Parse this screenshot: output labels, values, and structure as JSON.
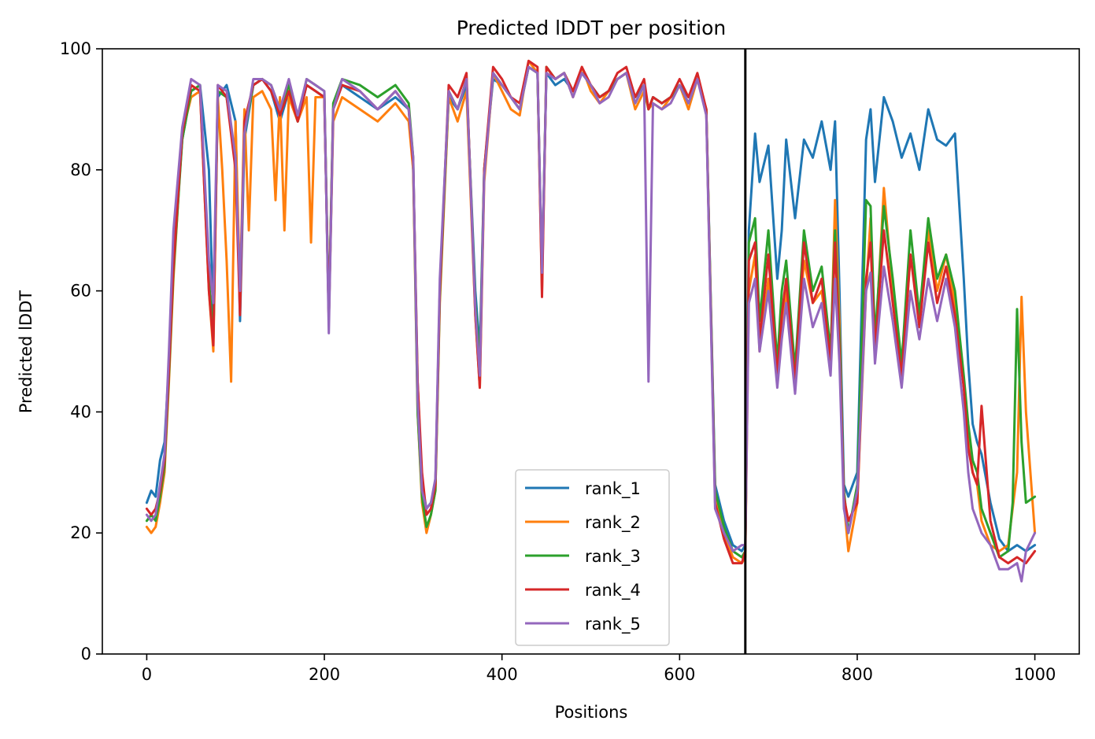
{
  "chart_data": {
    "type": "line",
    "title": "Predicted lDDT per position",
    "xlabel": "Positions",
    "ylabel": "Predicted lDDT",
    "xlim": [
      -50,
      1050
    ],
    "ylim": [
      0,
      100
    ],
    "xticks": [
      0,
      200,
      400,
      600,
      800,
      1000
    ],
    "yticks": [
      0,
      20,
      40,
      60,
      80,
      100
    ],
    "vline": 674,
    "grid": false,
    "legend_position": "lower-center",
    "series": [
      {
        "name": "rank_1",
        "color": "#1f77b4",
        "x": [
          0,
          5,
          10,
          15,
          20,
          25,
          30,
          40,
          50,
          60,
          70,
          75,
          80,
          90,
          100,
          105,
          110,
          120,
          130,
          140,
          150,
          160,
          170,
          180,
          190,
          200,
          205,
          210,
          220,
          240,
          260,
          280,
          295,
          300,
          305,
          310,
          315,
          320,
          325,
          330,
          340,
          350,
          360,
          370,
          375,
          380,
          390,
          400,
          410,
          420,
          430,
          440,
          445,
          450,
          460,
          470,
          480,
          490,
          500,
          510,
          520,
          530,
          540,
          550,
          560,
          565,
          570,
          580,
          590,
          600,
          610,
          620,
          630,
          640,
          650,
          660,
          670,
          674,
          678,
          685,
          690,
          700,
          710,
          715,
          720,
          730,
          740,
          750,
          760,
          770,
          775,
          780,
          785,
          790,
          800,
          810,
          815,
          820,
          830,
          840,
          850,
          860,
          870,
          880,
          890,
          900,
          910,
          920,
          925,
          930,
          935,
          940,
          950,
          960,
          970,
          980,
          990,
          1000
        ],
        "y": [
          25,
          27,
          26,
          32,
          35,
          48,
          65,
          85,
          93,
          94,
          80,
          55,
          92,
          94,
          88,
          55,
          85,
          94,
          95,
          93,
          88,
          93,
          88,
          94,
          93,
          92,
          55,
          90,
          94,
          92,
          90,
          92,
          90,
          80,
          45,
          28,
          24,
          25,
          28,
          60,
          92,
          90,
          94,
          60,
          50,
          80,
          95,
          94,
          92,
          90,
          97,
          96,
          62,
          96,
          94,
          95,
          93,
          96,
          94,
          92,
          93,
          95,
          96,
          92,
          94,
          90,
          92,
          91,
          92,
          94,
          92,
          95,
          90,
          28,
          22,
          18,
          17,
          18,
          70,
          86,
          78,
          84,
          62,
          70,
          85,
          72,
          85,
          82,
          88,
          80,
          88,
          60,
          28,
          26,
          30,
          85,
          90,
          78,
          92,
          88,
          82,
          86,
          80,
          90,
          85,
          84,
          86,
          62,
          48,
          38,
          35,
          33,
          25,
          19,
          17,
          18,
          17,
          18
        ]
      },
      {
        "name": "rank_2",
        "color": "#ff7f0e",
        "x": [
          0,
          5,
          10,
          15,
          20,
          25,
          30,
          40,
          50,
          60,
          70,
          75,
          80,
          85,
          90,
          95,
          100,
          105,
          110,
          115,
          120,
          130,
          140,
          145,
          150,
          155,
          160,
          170,
          180,
          185,
          190,
          200,
          205,
          210,
          220,
          240,
          260,
          280,
          295,
          300,
          305,
          310,
          315,
          320,
          325,
          330,
          340,
          350,
          360,
          370,
          375,
          380,
          390,
          400,
          410,
          420,
          430,
          440,
          445,
          450,
          460,
          470,
          480,
          490,
          500,
          510,
          520,
          530,
          540,
          550,
          560,
          565,
          570,
          580,
          590,
          600,
          610,
          620,
          630,
          640,
          650,
          660,
          670,
          674,
          678,
          685,
          690,
          700,
          710,
          715,
          720,
          730,
          740,
          750,
          760,
          770,
          775,
          780,
          785,
          790,
          800,
          810,
          815,
          820,
          830,
          840,
          850,
          860,
          870,
          880,
          890,
          900,
          910,
          920,
          925,
          930,
          935,
          940,
          950,
          960,
          970,
          980,
          985,
          990,
          1000
        ],
        "y": [
          21,
          20,
          21,
          25,
          30,
          45,
          62,
          86,
          92,
          93,
          60,
          50,
          92,
          80,
          65,
          45,
          88,
          60,
          90,
          70,
          92,
          93,
          90,
          75,
          92,
          70,
          92,
          88,
          92,
          68,
          92,
          92,
          55,
          88,
          92,
          90,
          88,
          91,
          88,
          80,
          40,
          25,
          20,
          23,
          27,
          58,
          92,
          88,
          93,
          56,
          44,
          78,
          96,
          93,
          90,
          89,
          98,
          96,
          60,
          97,
          95,
          96,
          92,
          97,
          93,
          91,
          93,
          95,
          96,
          90,
          93,
          90,
          91,
          90,
          92,
          94,
          90,
          95,
          90,
          26,
          20,
          16,
          15,
          16,
          60,
          66,
          50,
          62,
          46,
          54,
          60,
          45,
          65,
          58,
          60,
          48,
          75,
          55,
          25,
          17,
          25,
          60,
          72,
          50,
          77,
          60,
          45,
          66,
          55,
          70,
          60,
          66,
          58,
          45,
          36,
          30,
          28,
          22,
          18,
          17,
          18,
          30,
          59,
          40,
          20
        ]
      },
      {
        "name": "rank_3",
        "color": "#2ca02c",
        "x": [
          0,
          5,
          10,
          15,
          20,
          25,
          30,
          40,
          50,
          60,
          70,
          75,
          80,
          90,
          100,
          105,
          110,
          120,
          130,
          140,
          150,
          160,
          170,
          180,
          190,
          200,
          205,
          210,
          220,
          240,
          260,
          280,
          295,
          300,
          305,
          310,
          315,
          320,
          325,
          330,
          340,
          350,
          360,
          370,
          375,
          380,
          390,
          400,
          410,
          420,
          430,
          440,
          445,
          450,
          460,
          470,
          480,
          490,
          500,
          510,
          520,
          530,
          540,
          550,
          560,
          565,
          570,
          580,
          590,
          600,
          610,
          620,
          630,
          640,
          650,
          660,
          670,
          674,
          678,
          685,
          690,
          700,
          710,
          715,
          720,
          730,
          740,
          750,
          760,
          770,
          775,
          780,
          785,
          790,
          800,
          810,
          815,
          820,
          830,
          840,
          850,
          860,
          870,
          880,
          890,
          900,
          910,
          920,
          925,
          930,
          935,
          940,
          950,
          960,
          970,
          975,
          980,
          985,
          990,
          1000
        ],
        "y": [
          22,
          23,
          22,
          26,
          31,
          46,
          63,
          85,
          93,
          94,
          62,
          52,
          93,
          92,
          82,
          58,
          86,
          94,
          95,
          94,
          90,
          94,
          88,
          95,
          94,
          93,
          56,
          91,
          95,
          94,
          92,
          94,
          91,
          82,
          40,
          26,
          21,
          23,
          27,
          59,
          93,
          90,
          95,
          58,
          48,
          80,
          96,
          94,
          92,
          90,
          97,
          96,
          62,
          97,
          95,
          96,
          93,
          96,
          94,
          92,
          93,
          95,
          96,
          91,
          94,
          90,
          92,
          91,
          92,
          94,
          91,
          95,
          90,
          27,
          21,
          17,
          16,
          17,
          68,
          72,
          55,
          70,
          48,
          60,
          65,
          47,
          70,
          60,
          64,
          50,
          70,
          52,
          27,
          20,
          28,
          75,
          74,
          52,
          74,
          62,
          48,
          70,
          56,
          72,
          62,
          66,
          60,
          46,
          38,
          32,
          30,
          24,
          20,
          16,
          17,
          25,
          57,
          35,
          25,
          26
        ]
      },
      {
        "name": "rank_4",
        "color": "#d62728",
        "x": [
          0,
          5,
          10,
          15,
          20,
          25,
          30,
          40,
          50,
          60,
          70,
          75,
          80,
          90,
          100,
          105,
          110,
          120,
          130,
          140,
          150,
          160,
          170,
          180,
          190,
          200,
          205,
          210,
          220,
          240,
          260,
          280,
          295,
          300,
          305,
          310,
          315,
          320,
          325,
          330,
          340,
          350,
          360,
          370,
          375,
          380,
          390,
          400,
          410,
          420,
          430,
          440,
          445,
          450,
          460,
          470,
          480,
          490,
          500,
          510,
          520,
          530,
          540,
          550,
          560,
          565,
          570,
          580,
          590,
          600,
          610,
          620,
          630,
          640,
          650,
          660,
          670,
          674,
          678,
          685,
          690,
          700,
          710,
          715,
          720,
          730,
          740,
          750,
          760,
          770,
          775,
          780,
          785,
          790,
          800,
          810,
          815,
          820,
          830,
          840,
          850,
          860,
          870,
          880,
          890,
          900,
          910,
          920,
          925,
          930,
          935,
          940,
          950,
          960,
          970,
          980,
          990,
          1000
        ],
        "y": [
          24,
          23,
          24,
          27,
          32,
          47,
          64,
          86,
          94,
          93,
          60,
          51,
          94,
          92,
          80,
          56,
          88,
          94,
          95,
          93,
          89,
          93,
          88,
          94,
          93,
          92,
          55,
          90,
          94,
          93,
          90,
          93,
          90,
          81,
          45,
          30,
          23,
          24,
          28,
          60,
          94,
          92,
          96,
          56,
          44,
          80,
          97,
          95,
          92,
          91,
          98,
          97,
          59,
          97,
          95,
          96,
          93,
          97,
          94,
          92,
          93,
          96,
          97,
          92,
          95,
          90,
          92,
          91,
          92,
          95,
          92,
          96,
          90,
          25,
          19,
          15,
          15,
          17,
          65,
          68,
          52,
          66,
          46,
          56,
          62,
          45,
          68,
          58,
          62,
          48,
          68,
          50,
          26,
          22,
          25,
          62,
          68,
          50,
          70,
          58,
          46,
          66,
          54,
          68,
          58,
          64,
          56,
          44,
          34,
          30,
          28,
          41,
          22,
          16,
          15,
          16,
          15,
          17
        ]
      },
      {
        "name": "rank_5",
        "color": "#9467bd",
        "x": [
          0,
          5,
          10,
          15,
          20,
          25,
          30,
          40,
          50,
          60,
          70,
          75,
          80,
          90,
          100,
          105,
          110,
          120,
          130,
          140,
          150,
          160,
          170,
          180,
          190,
          200,
          205,
          210,
          220,
          240,
          260,
          280,
          295,
          300,
          305,
          310,
          315,
          320,
          325,
          330,
          340,
          350,
          360,
          370,
          375,
          380,
          390,
          400,
          410,
          420,
          430,
          440,
          445,
          450,
          460,
          470,
          480,
          490,
          500,
          510,
          520,
          530,
          540,
          550,
          560,
          565,
          570,
          580,
          590,
          600,
          610,
          620,
          630,
          640,
          650,
          660,
          670,
          674,
          678,
          685,
          690,
          700,
          710,
          715,
          720,
          730,
          740,
          750,
          760,
          770,
          775,
          780,
          785,
          790,
          800,
          810,
          815,
          820,
          830,
          840,
          850,
          860,
          870,
          880,
          890,
          900,
          910,
          920,
          925,
          930,
          935,
          940,
          950,
          960,
          970,
          980,
          985,
          990,
          1000
        ],
        "y": [
          23,
          22,
          23,
          28,
          33,
          50,
          70,
          87,
          95,
          94,
          65,
          58,
          94,
          93,
          82,
          60,
          86,
          95,
          95,
          94,
          90,
          95,
          89,
          95,
          94,
          93,
          53,
          90,
          95,
          93,
          90,
          93,
          90,
          82,
          42,
          27,
          24,
          25,
          29,
          62,
          93,
          90,
          95,
          57,
          46,
          79,
          96,
          94,
          92,
          90,
          97,
          96,
          63,
          96,
          95,
          96,
          92,
          96,
          94,
          91,
          92,
          95,
          96,
          91,
          94,
          45,
          91,
          90,
          91,
          94,
          91,
          95,
          89,
          24,
          20,
          17,
          18,
          18,
          58,
          62,
          50,
          60,
          44,
          52,
          58,
          43,
          62,
          54,
          58,
          46,
          62,
          48,
          24,
          20,
          27,
          60,
          63,
          48,
          64,
          55,
          44,
          60,
          52,
          62,
          55,
          62,
          54,
          40,
          30,
          24,
          22,
          20,
          18,
          14,
          14,
          15,
          12,
          17,
          20
        ]
      }
    ]
  }
}
